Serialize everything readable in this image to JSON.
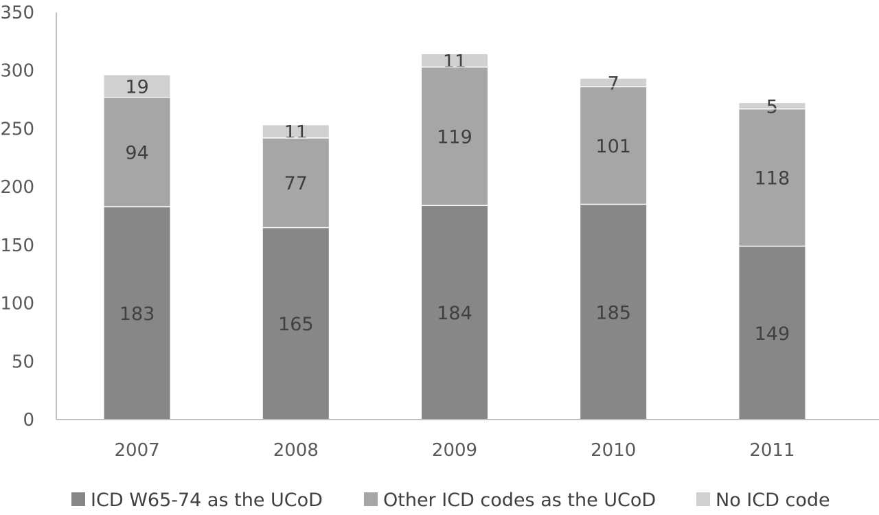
{
  "chart_data": {
    "type": "bar",
    "stacked": true,
    "categories": [
      "2007",
      "2008",
      "2009",
      "2010",
      "2011"
    ],
    "series": [
      {
        "name": "ICD W65-74 as the UCoD",
        "values": [
          183,
          165,
          184,
          185,
          149
        ],
        "color": "#878787"
      },
      {
        "name": "Other ICD codes as the UCoD",
        "values": [
          94,
          77,
          119,
          101,
          118
        ],
        "color": "#a6a6a6"
      },
      {
        "name": "No ICD code",
        "values": [
          19,
          11,
          11,
          7,
          5
        ],
        "color": "#d0d0d0"
      }
    ],
    "ylim": [
      0,
      350
    ],
    "yticks": [
      0,
      50,
      100,
      150,
      200,
      250,
      300,
      350
    ],
    "grid": false,
    "legend_position": "bottom",
    "title": "",
    "xlabel": "",
    "ylabel": ""
  }
}
